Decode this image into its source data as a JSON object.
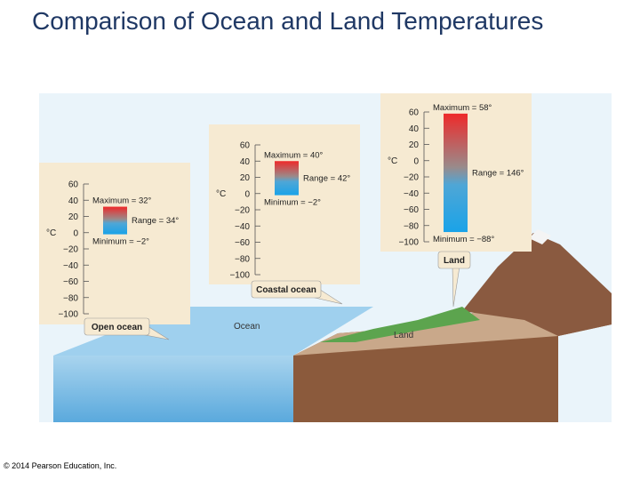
{
  "title": "Comparison of Ocean and Land Temperatures",
  "footer": "© 2014 Pearson Education, Inc.",
  "scene_labels": [
    "Ocean",
    "Land"
  ],
  "chart_data": [
    {
      "type": "range",
      "title": "Open ocean",
      "y_label": "°C",
      "ylim": [
        -100,
        60
      ],
      "yticks": [
        60,
        40,
        20,
        0,
        {
          "value": -20,
          "label": "−20"
        },
        {
          "value": -40,
          "label": "−40"
        },
        {
          "value": -60,
          "label": "−60"
        },
        {
          "value": -80,
          "label": "−80"
        },
        {
          "value": -100,
          "label": "−100"
        }
      ],
      "high": 32,
      "low": -2,
      "range": 34,
      "value_labels": {
        "high": "Maximum = 32°",
        "range": "Range = 34°",
        "low": "Minimum = −2°"
      }
    },
    {
      "type": "range",
      "title": "Coastal ocean",
      "y_label": "°C",
      "ylim": [
        -100,
        60
      ],
      "yticks": [
        60,
        40,
        20,
        0,
        {
          "value": -20,
          "label": "−20"
        },
        {
          "value": -40,
          "label": "−40"
        },
        {
          "value": -60,
          "label": "−60"
        },
        {
          "value": -80,
          "label": "−80"
        },
        {
          "value": -100,
          "label": "−100"
        }
      ],
      "high": 40,
      "low": -2,
      "range": 42,
      "value_labels": {
        "high": "Maximum = 40°",
        "range": "Range = 42°",
        "low": "Minimum = −2°"
      }
    },
    {
      "type": "range",
      "title": "Land",
      "y_label": "°C",
      "ylim": [
        -100,
        60
      ],
      "yticks": [
        60,
        40,
        20,
        0,
        {
          "value": -20,
          "label": "−20"
        },
        {
          "value": -40,
          "label": "−40"
        },
        {
          "value": -60,
          "label": "−60"
        },
        {
          "value": -80,
          "label": "−80"
        },
        {
          "value": -100,
          "label": "−100"
        }
      ],
      "high": 58,
      "low": -88,
      "range": 146,
      "value_labels": {
        "high": "Maximum = 58°",
        "range": "Range = 146°",
        "low": "Minimum = −88°"
      }
    }
  ]
}
